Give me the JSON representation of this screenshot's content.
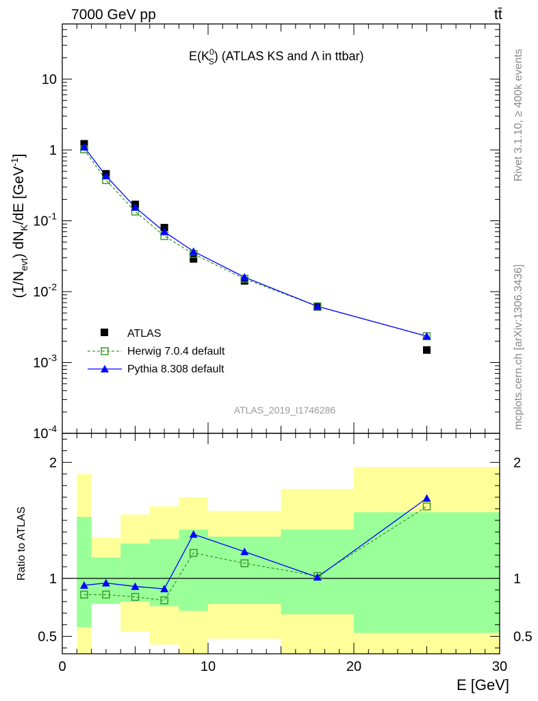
{
  "header": {
    "energy_label": "7000 GeV pp",
    "process_label": "tt̄"
  },
  "side_labels": {
    "rivet": "Rivet 3.1.10, ≥ 400k events",
    "mcplots": "mcplots.cern.ch [arXiv:1306.3436]"
  },
  "main_plot": {
    "title_prefix": "E(K",
    "title_sup": "0",
    "title_sub": "S",
    "title_suffix": ") (ATLAS KS and Λ in ttbar)",
    "ylabel": "(1/N_evt) dN_K/dE [GeV^-1]",
    "watermark": "ATLAS_2019_I1746286"
  },
  "legend": [
    {
      "label": "ATLAS"
    },
    {
      "label": "Herwig 7.0.4 default"
    },
    {
      "label": "Pythia 8.308 default"
    }
  ],
  "ratio_plot": {
    "ylabel": "Ratio to ATLAS"
  },
  "xlabel": "E [GeV]",
  "colors": {
    "data": "#000000",
    "herwig": "#3a9a2a",
    "pythia": "#0000ff",
    "band_outer": "#ffff99",
    "band_inner": "#99ff99"
  },
  "chart_data": [
    {
      "type": "scatter",
      "title": "E(K0S) (ATLAS KS and Λ in ttbar)",
      "xlabel": "E [GeV]",
      "ylabel": "(1/Nevt) dNK/dE [GeV^-1]",
      "yscale": "log",
      "xlim": [
        0,
        30
      ],
      "ylim": [
        0.0001,
        60
      ],
      "x_ticks": [
        0,
        10,
        20,
        30
      ],
      "y_ticks": [
        0.0001,
        0.001,
        0.01,
        0.1,
        1,
        10
      ],
      "y_tick_labels": [
        "10^-4",
        "10^-3",
        "10^-2",
        "10^-1",
        "1",
        "10"
      ],
      "series": [
        {
          "name": "ATLAS",
          "x": [
            1.5,
            3,
            5,
            7,
            9,
            12.5,
            17.5,
            25
          ],
          "y": [
            1.22,
            0.46,
            0.17,
            0.08,
            0.029,
            0.0142,
            0.0061,
            0.0015
          ]
        },
        {
          "name": "Herwig 7.0.4 default",
          "x": [
            1.5,
            3,
            5,
            7,
            9,
            12.5,
            17.5,
            25
          ],
          "y": [
            1.02,
            0.375,
            0.135,
            0.061,
            0.034,
            0.0152,
            0.0062,
            0.00235
          ]
        },
        {
          "name": "Pythia 8.308 default",
          "x": [
            1.5,
            3,
            5,
            7,
            9,
            12.5,
            17.5,
            25
          ],
          "y": [
            1.1,
            0.43,
            0.155,
            0.07,
            0.037,
            0.016,
            0.0062,
            0.00235
          ]
        }
      ]
    },
    {
      "type": "line",
      "ylabel": "Ratio to ATLAS",
      "xlim": [
        0,
        30
      ],
      "ylim": [
        0.35,
        2.25
      ],
      "y_ticks": [
        0.5,
        1,
        2
      ],
      "reference_line": 1,
      "bands": [
        {
          "x_edges": [
            1,
            2,
            4,
            6,
            8,
            10,
            15,
            20,
            30
          ],
          "outer_low": [
            0.35,
            0.78,
            0.54,
            0.43,
            0.35,
            0.48,
            0.35,
            0.35
          ],
          "outer_high": [
            1.9,
            1.35,
            1.55,
            1.62,
            1.7,
            1.58,
            1.77,
            1.96
          ],
          "inner_low": [
            0.58,
            0.78,
            0.8,
            0.76,
            0.72,
            0.78,
            0.69,
            0.53
          ],
          "inner_high": [
            1.53,
            1.18,
            1.3,
            1.34,
            1.42,
            1.36,
            1.42,
            1.57
          ]
        }
      ],
      "series": [
        {
          "name": "Herwig 7.0.4 default",
          "x": [
            1.5,
            3,
            5,
            7,
            9,
            12.5,
            17.5,
            25
          ],
          "y": [
            0.86,
            0.86,
            0.84,
            0.81,
            1.22,
            1.13,
            1.02,
            1.62
          ]
        },
        {
          "name": "Pythia 8.308 default",
          "x": [
            1.5,
            3,
            5,
            7,
            9,
            12.5,
            17.5,
            25
          ],
          "y": [
            0.94,
            0.96,
            0.93,
            0.91,
            1.38,
            1.23,
            1.01,
            1.69
          ]
        }
      ]
    }
  ]
}
